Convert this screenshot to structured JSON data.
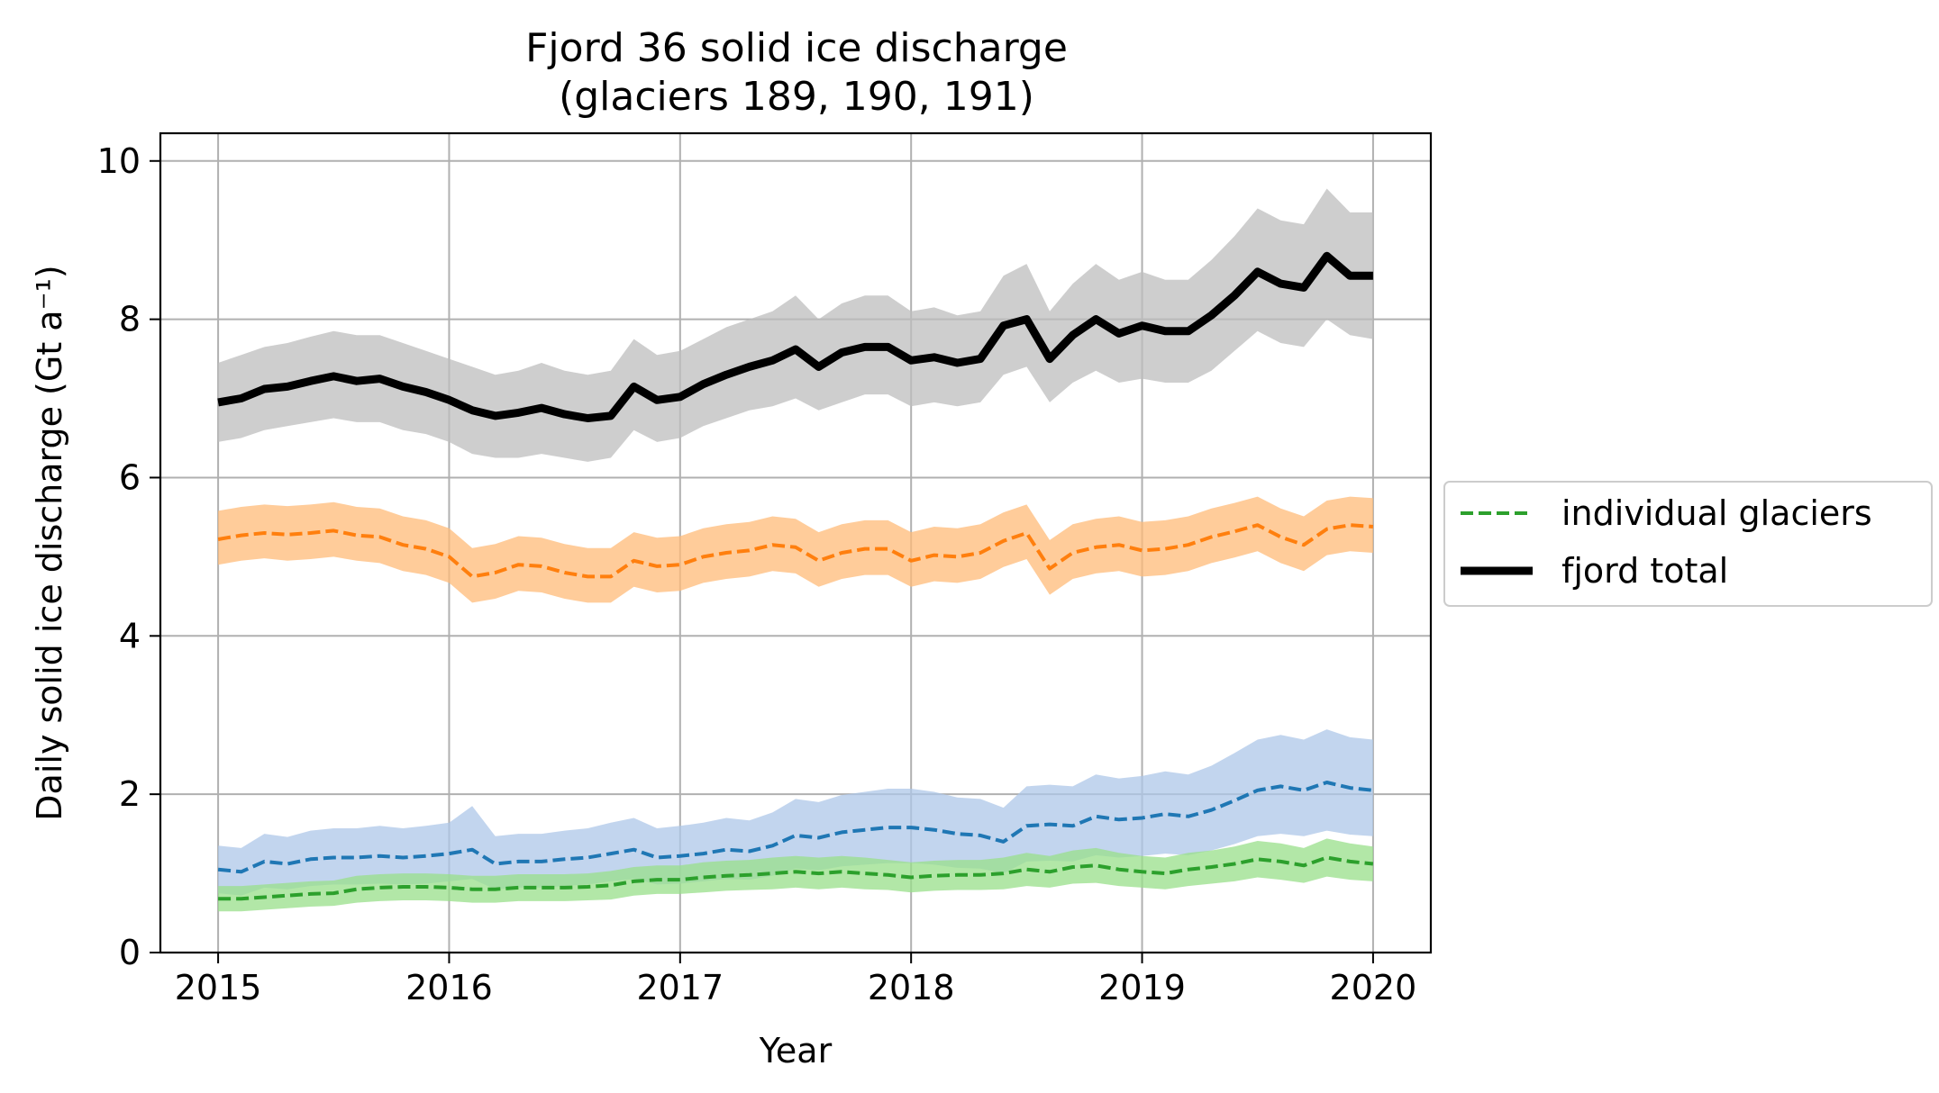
{
  "chart_data": {
    "type": "line",
    "title": "Fjord 36 solid ice discharge",
    "subtitle": "(glaciers 189, 190, 191)",
    "xlabel": "Year",
    "ylabel": "Daily solid ice discharge (Gt a⁻¹)",
    "xlim": [
      2014.75,
      2020.25
    ],
    "ylim": [
      0,
      10.35
    ],
    "xticks": [
      2015,
      2016,
      2017,
      2018,
      2019,
      2020
    ],
    "xtick_labels": [
      "2015",
      "2016",
      "2017",
      "2018",
      "2019",
      "2020"
    ],
    "yticks": [
      0,
      2,
      4,
      6,
      8,
      10
    ],
    "ytick_labels": [
      "0",
      "2",
      "4",
      "6",
      "8",
      "10"
    ],
    "grid": true,
    "legend_position": "center-right-outside",
    "legend": [
      {
        "label": "individual glaciers",
        "style": "dashed",
        "color": "#2ca02c"
      },
      {
        "label": "fjord total",
        "style": "solid-thick",
        "color": "#000000"
      }
    ],
    "series": [
      {
        "name": "fjord total",
        "color": "#000000",
        "band_color": "#bdbdbd",
        "style": "solid",
        "x": [
          2015.0,
          2015.1,
          2015.2,
          2015.3,
          2015.4,
          2015.5,
          2015.6,
          2015.7,
          2015.8,
          2015.9,
          2016.0,
          2016.1,
          2016.2,
          2016.3,
          2016.4,
          2016.5,
          2016.6,
          2016.7,
          2016.8,
          2016.9,
          2017.0,
          2017.1,
          2017.2,
          2017.3,
          2017.4,
          2017.5,
          2017.6,
          2017.7,
          2017.8,
          2017.9,
          2018.0,
          2018.1,
          2018.2,
          2018.3,
          2018.4,
          2018.5,
          2018.6,
          2018.7,
          2018.8,
          2018.9,
          2019.0,
          2019.1,
          2019.2,
          2019.3,
          2019.4,
          2019.5,
          2019.6,
          2019.7,
          2019.8,
          2019.9,
          2020.0
        ],
        "values": [
          6.95,
          7.0,
          7.12,
          7.15,
          7.22,
          7.28,
          7.22,
          7.25,
          7.15,
          7.08,
          6.98,
          6.85,
          6.78,
          6.82,
          6.88,
          6.8,
          6.75,
          6.78,
          7.15,
          6.98,
          7.02,
          7.18,
          7.3,
          7.4,
          7.48,
          7.62,
          7.4,
          7.58,
          7.65,
          7.65,
          7.48,
          7.52,
          7.45,
          7.5,
          7.92,
          8.0,
          7.5,
          7.8,
          8.0,
          7.82,
          7.92,
          7.85,
          7.85,
          8.05,
          8.3,
          8.6,
          8.45,
          8.4,
          8.8,
          8.55,
          8.55
        ],
        "lower": [
          6.45,
          6.5,
          6.6,
          6.65,
          6.7,
          6.75,
          6.7,
          6.7,
          6.6,
          6.55,
          6.45,
          6.3,
          6.25,
          6.25,
          6.3,
          6.25,
          6.2,
          6.25,
          6.6,
          6.45,
          6.5,
          6.65,
          6.75,
          6.85,
          6.9,
          7.0,
          6.85,
          6.95,
          7.05,
          7.05,
          6.9,
          6.95,
          6.9,
          6.95,
          7.3,
          7.4,
          6.95,
          7.2,
          7.35,
          7.2,
          7.25,
          7.2,
          7.2,
          7.35,
          7.6,
          7.85,
          7.7,
          7.65,
          8.0,
          7.8,
          7.75
        ],
        "upper": [
          7.45,
          7.55,
          7.65,
          7.7,
          7.78,
          7.85,
          7.8,
          7.8,
          7.7,
          7.6,
          7.5,
          7.4,
          7.3,
          7.35,
          7.45,
          7.35,
          7.3,
          7.35,
          7.75,
          7.55,
          7.6,
          7.75,
          7.9,
          8.0,
          8.1,
          8.3,
          8.0,
          8.2,
          8.3,
          8.3,
          8.1,
          8.15,
          8.05,
          8.1,
          8.55,
          8.7,
          8.1,
          8.45,
          8.7,
          8.5,
          8.6,
          8.5,
          8.5,
          8.75,
          9.05,
          9.4,
          9.25,
          9.2,
          9.65,
          9.35,
          9.35
        ]
      },
      {
        "color": "#ff7f0e",
        "band_color": "#ffbb78",
        "style": "dashed",
        "x": [
          2015.0,
          2015.1,
          2015.2,
          2015.3,
          2015.4,
          2015.5,
          2015.6,
          2015.7,
          2015.8,
          2015.9,
          2016.0,
          2016.1,
          2016.2,
          2016.3,
          2016.4,
          2016.5,
          2016.6,
          2016.7,
          2016.8,
          2016.9,
          2017.0,
          2017.1,
          2017.2,
          2017.3,
          2017.4,
          2017.5,
          2017.6,
          2017.7,
          2017.8,
          2017.9,
          2018.0,
          2018.1,
          2018.2,
          2018.3,
          2018.4,
          2018.5,
          2018.6,
          2018.7,
          2018.8,
          2018.9,
          2019.0,
          2019.1,
          2019.2,
          2019.3,
          2019.4,
          2019.5,
          2019.6,
          2019.7,
          2019.8,
          2019.9,
          2020.0
        ],
        "values": [
          5.22,
          5.27,
          5.3,
          5.28,
          5.3,
          5.33,
          5.27,
          5.25,
          5.15,
          5.1,
          5.0,
          4.75,
          4.8,
          4.9,
          4.88,
          4.8,
          4.75,
          4.75,
          4.95,
          4.88,
          4.9,
          5.0,
          5.05,
          5.08,
          5.15,
          5.12,
          4.95,
          5.05,
          5.1,
          5.1,
          4.95,
          5.02,
          5.0,
          5.05,
          5.2,
          5.3,
          4.85,
          5.05,
          5.12,
          5.15,
          5.08,
          5.1,
          5.15,
          5.25,
          5.32,
          5.4,
          5.25,
          5.15,
          5.35,
          5.4,
          5.38
        ],
        "lower": [
          4.9,
          4.95,
          4.98,
          4.95,
          4.97,
          5.0,
          4.95,
          4.92,
          4.82,
          4.77,
          4.67,
          4.42,
          4.47,
          4.57,
          4.55,
          4.47,
          4.42,
          4.42,
          4.62,
          4.55,
          4.57,
          4.67,
          4.72,
          4.75,
          4.82,
          4.79,
          4.62,
          4.72,
          4.77,
          4.77,
          4.62,
          4.69,
          4.67,
          4.72,
          4.87,
          4.97,
          4.52,
          4.72,
          4.79,
          4.82,
          4.75,
          4.77,
          4.82,
          4.92,
          4.99,
          5.07,
          4.92,
          4.82,
          5.02,
          5.07,
          5.05
        ],
        "upper": [
          5.58,
          5.63,
          5.66,
          5.64,
          5.66,
          5.69,
          5.63,
          5.61,
          5.51,
          5.46,
          5.36,
          5.11,
          5.16,
          5.26,
          5.24,
          5.16,
          5.11,
          5.11,
          5.31,
          5.24,
          5.26,
          5.36,
          5.41,
          5.44,
          5.51,
          5.48,
          5.31,
          5.41,
          5.46,
          5.46,
          5.31,
          5.38,
          5.36,
          5.41,
          5.56,
          5.66,
          5.21,
          5.41,
          5.48,
          5.51,
          5.44,
          5.46,
          5.51,
          5.61,
          5.68,
          5.76,
          5.61,
          5.51,
          5.71,
          5.76,
          5.74
        ]
      },
      {
        "color": "#1f77b4",
        "band_color": "#aec7e8",
        "style": "dashed",
        "x": [
          2015.0,
          2015.1,
          2015.2,
          2015.3,
          2015.4,
          2015.5,
          2015.6,
          2015.7,
          2015.8,
          2015.9,
          2016.0,
          2016.1,
          2016.2,
          2016.3,
          2016.4,
          2016.5,
          2016.6,
          2016.7,
          2016.8,
          2016.9,
          2017.0,
          2017.1,
          2017.2,
          2017.3,
          2017.4,
          2017.5,
          2017.6,
          2017.7,
          2017.8,
          2017.9,
          2018.0,
          2018.1,
          2018.2,
          2018.3,
          2018.4,
          2018.5,
          2018.6,
          2018.7,
          2018.8,
          2018.9,
          2019.0,
          2019.1,
          2019.2,
          2019.3,
          2019.4,
          2019.5,
          2019.6,
          2019.7,
          2019.8,
          2019.9,
          2020.0
        ],
        "values": [
          1.05,
          1.02,
          1.15,
          1.12,
          1.18,
          1.2,
          1.2,
          1.22,
          1.2,
          1.22,
          1.25,
          1.3,
          1.12,
          1.15,
          1.15,
          1.18,
          1.2,
          1.25,
          1.3,
          1.2,
          1.22,
          1.25,
          1.3,
          1.28,
          1.35,
          1.48,
          1.45,
          1.52,
          1.55,
          1.58,
          1.58,
          1.55,
          1.5,
          1.48,
          1.4,
          1.6,
          1.62,
          1.6,
          1.72,
          1.68,
          1.7,
          1.75,
          1.72,
          1.8,
          1.92,
          2.05,
          2.1,
          2.05,
          2.15,
          2.08,
          2.05
        ],
        "lower": [
          0.75,
          0.72,
          0.82,
          0.8,
          0.84,
          0.86,
          0.86,
          0.87,
          0.86,
          0.87,
          0.9,
          0.93,
          0.8,
          0.82,
          0.82,
          0.84,
          0.86,
          0.9,
          0.93,
          0.86,
          0.87,
          0.9,
          0.93,
          0.92,
          0.97,
          1.06,
          1.04,
          1.09,
          1.11,
          1.13,
          1.13,
          1.11,
          1.07,
          1.06,
          1.0,
          1.15,
          1.16,
          1.15,
          1.23,
          1.2,
          1.22,
          1.25,
          1.23,
          1.29,
          1.37,
          1.47,
          1.5,
          1.47,
          1.54,
          1.49,
          1.47
        ],
        "upper": [
          1.35,
          1.32,
          1.5,
          1.46,
          1.54,
          1.57,
          1.57,
          1.6,
          1.57,
          1.6,
          1.64,
          1.85,
          1.47,
          1.5,
          1.5,
          1.54,
          1.57,
          1.64,
          1.7,
          1.57,
          1.6,
          1.64,
          1.7,
          1.67,
          1.77,
          1.94,
          1.9,
          1.99,
          2.03,
          2.07,
          2.07,
          2.03,
          1.96,
          1.94,
          1.83,
          2.1,
          2.12,
          2.1,
          2.25,
          2.2,
          2.23,
          2.29,
          2.25,
          2.36,
          2.52,
          2.69,
          2.75,
          2.69,
          2.82,
          2.72,
          2.69
        ]
      },
      {
        "name": "individual glaciers",
        "color": "#2ca02c",
        "band_color": "#98df8a",
        "style": "dashed",
        "x": [
          2015.0,
          2015.1,
          2015.2,
          2015.3,
          2015.4,
          2015.5,
          2015.6,
          2015.7,
          2015.8,
          2015.9,
          2016.0,
          2016.1,
          2016.2,
          2016.3,
          2016.4,
          2016.5,
          2016.6,
          2016.7,
          2016.8,
          2016.9,
          2017.0,
          2017.1,
          2017.2,
          2017.3,
          2017.4,
          2017.5,
          2017.6,
          2017.7,
          2017.8,
          2017.9,
          2018.0,
          2018.1,
          2018.2,
          2018.3,
          2018.4,
          2018.5,
          2018.6,
          2018.7,
          2018.8,
          2018.9,
          2019.0,
          2019.1,
          2019.2,
          2019.3,
          2019.4,
          2019.5,
          2019.6,
          2019.7,
          2019.8,
          2019.9,
          2020.0
        ],
        "values": [
          0.68,
          0.68,
          0.7,
          0.72,
          0.74,
          0.75,
          0.8,
          0.82,
          0.83,
          0.83,
          0.82,
          0.8,
          0.8,
          0.82,
          0.82,
          0.82,
          0.83,
          0.85,
          0.9,
          0.92,
          0.92,
          0.95,
          0.97,
          0.98,
          1.0,
          1.02,
          1.0,
          1.02,
          1.0,
          0.98,
          0.95,
          0.97,
          0.98,
          0.98,
          1.0,
          1.05,
          1.02,
          1.08,
          1.1,
          1.05,
          1.02,
          1.0,
          1.05,
          1.08,
          1.12,
          1.18,
          1.15,
          1.1,
          1.2,
          1.15,
          1.12
        ],
        "lower": [
          0.52,
          0.52,
          0.54,
          0.56,
          0.58,
          0.59,
          0.63,
          0.65,
          0.66,
          0.66,
          0.65,
          0.63,
          0.63,
          0.65,
          0.65,
          0.65,
          0.66,
          0.67,
          0.72,
          0.74,
          0.74,
          0.76,
          0.78,
          0.79,
          0.8,
          0.82,
          0.8,
          0.82,
          0.8,
          0.79,
          0.76,
          0.78,
          0.79,
          0.79,
          0.8,
          0.84,
          0.82,
          0.87,
          0.88,
          0.84,
          0.82,
          0.8,
          0.84,
          0.87,
          0.9,
          0.95,
          0.92,
          0.88,
          0.96,
          0.92,
          0.9
        ],
        "upper": [
          0.84,
          0.84,
          0.86,
          0.88,
          0.9,
          0.91,
          0.97,
          0.99,
          1.0,
          1.0,
          0.99,
          0.97,
          0.97,
          0.99,
          0.99,
          0.99,
          1.0,
          1.03,
          1.08,
          1.1,
          1.1,
          1.14,
          1.16,
          1.17,
          1.2,
          1.22,
          1.2,
          1.22,
          1.2,
          1.17,
          1.14,
          1.16,
          1.17,
          1.17,
          1.2,
          1.26,
          1.22,
          1.29,
          1.32,
          1.26,
          1.22,
          1.2,
          1.26,
          1.29,
          1.34,
          1.41,
          1.38,
          1.32,
          1.44,
          1.38,
          1.34
        ]
      }
    ]
  }
}
